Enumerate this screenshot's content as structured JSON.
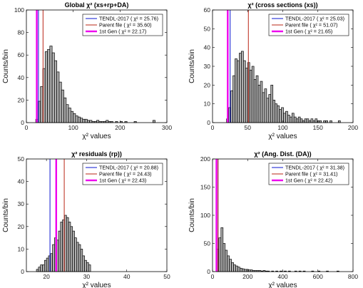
{
  "chart_data": [
    {
      "type": "bar",
      "title": "Global  χ² (xs+rp+DA)",
      "xlabel": "χ² values",
      "ylabel": "Counts/bin",
      "xlim": [
        0,
        300
      ],
      "ylim": [
        0,
        100
      ],
      "xticks": [
        0,
        100,
        200,
        300
      ],
      "yticks": [
        0,
        20,
        40,
        60,
        80,
        100
      ],
      "bin_width": 5,
      "bins": [
        [
          22.5,
          3
        ],
        [
          27.5,
          19
        ],
        [
          32.5,
          32
        ],
        [
          37.5,
          48
        ],
        [
          42.5,
          63
        ],
        [
          47.5,
          65
        ],
        [
          52.5,
          68
        ],
        [
          57.5,
          62
        ],
        [
          62.5,
          55
        ],
        [
          67.5,
          45
        ],
        [
          72.5,
          36
        ],
        [
          77.5,
          29
        ],
        [
          82.5,
          22
        ],
        [
          87.5,
          16
        ],
        [
          92.5,
          13
        ],
        [
          97.5,
          10
        ],
        [
          102.5,
          8
        ],
        [
          107.5,
          6
        ],
        [
          112.5,
          5
        ],
        [
          117.5,
          4
        ],
        [
          122.5,
          3
        ],
        [
          127.5,
          3
        ],
        [
          132.5,
          2
        ],
        [
          137.5,
          2
        ],
        [
          142.5,
          1
        ],
        [
          147.5,
          1
        ],
        [
          152.5,
          2
        ],
        [
          157.5,
          1
        ],
        [
          162.5,
          1
        ],
        [
          167.5,
          1
        ],
        [
          172.5,
          2
        ],
        [
          177.5,
          1
        ],
        [
          182.5,
          1
        ],
        [
          192.5,
          1
        ],
        [
          202.5,
          1
        ],
        [
          212.5,
          1
        ],
        [
          232.5,
          1
        ],
        [
          272.5,
          2
        ]
      ],
      "lines": [
        {
          "name": "TENDL-2017",
          "x": 25.76,
          "color": "#1f2bd6"
        },
        {
          "name": "Parent file",
          "x": 35.6,
          "color": "#c0392b"
        },
        {
          "name": "1st Gen",
          "x": 22.17,
          "color": "#ee00ee"
        }
      ],
      "legend": [
        "TENDL-2017 ( χ² = 25.76)",
        "Parent file ( χ² = 35.60)",
        "1st Gen ( χ² = 22.17)"
      ],
      "legend_position": "top-right"
    },
    {
      "type": "bar",
      "title": "χ² (cross sections (xs))",
      "xlabel": "χ² values",
      "ylabel": "Counts/bin",
      "xlim": [
        0,
        200
      ],
      "ylim": [
        0,
        60
      ],
      "xticks": [
        0,
        50,
        100,
        150,
        200
      ],
      "yticks": [
        0,
        10,
        20,
        30,
        40,
        50,
        60
      ],
      "bin_width": 3,
      "bins": [
        [
          21.5,
          2
        ],
        [
          24.5,
          8
        ],
        [
          27.5,
          17
        ],
        [
          30.5,
          25
        ],
        [
          33.5,
          34
        ],
        [
          36.5,
          33
        ],
        [
          39.5,
          37
        ],
        [
          42.5,
          38
        ],
        [
          45.5,
          33
        ],
        [
          48.5,
          29
        ],
        [
          51.5,
          32
        ],
        [
          54.5,
          28
        ],
        [
          57.5,
          30
        ],
        [
          60.5,
          23
        ],
        [
          63.5,
          25
        ],
        [
          66.5,
          20
        ],
        [
          69.5,
          22
        ],
        [
          72.5,
          16
        ],
        [
          75.5,
          18
        ],
        [
          78.5,
          13
        ],
        [
          81.5,
          15
        ],
        [
          84.5,
          20
        ],
        [
          87.5,
          12
        ],
        [
          90.5,
          10
        ],
        [
          93.5,
          9
        ],
        [
          96.5,
          7
        ],
        [
          99.5,
          8
        ],
        [
          102.5,
          5
        ],
        [
          105.5,
          6
        ],
        [
          108.5,
          4
        ],
        [
          111.5,
          3
        ],
        [
          114.5,
          5
        ],
        [
          117.5,
          3
        ],
        [
          120.5,
          2
        ],
        [
          123.5,
          3
        ],
        [
          126.5,
          2
        ],
        [
          129.5,
          1
        ],
        [
          132.5,
          2
        ],
        [
          135.5,
          2
        ],
        [
          138.5,
          1
        ],
        [
          141.5,
          2
        ],
        [
          144.5,
          1
        ],
        [
          147.5,
          2
        ],
        [
          150.5,
          1
        ],
        [
          153.5,
          1
        ],
        [
          159.5,
          1
        ],
        [
          162.5,
          1
        ],
        [
          168.5,
          1
        ],
        [
          180.5,
          1
        ]
      ],
      "lines": [
        {
          "name": "TENDL-2017",
          "x": 25.03,
          "color": "#1f2bd6"
        },
        {
          "name": "Parent file",
          "x": 51.07,
          "color": "#c0392b"
        },
        {
          "name": "1st Gen",
          "x": 21.65,
          "color": "#ee00ee"
        }
      ],
      "legend": [
        "TENDL-2017 ( χ² = 25.03)",
        "Parent file ( χ² = 51.07)",
        "1st Gen ( χ² = 21.65)"
      ],
      "legend_position": "top-right"
    },
    {
      "type": "bar",
      "title": "χ² residuals (rp))",
      "xlabel": "χ² values",
      "ylabel": "Counts/bin",
      "xlim": [
        15,
        50
      ],
      "ylim": [
        0,
        50
      ],
      "xticks": [
        20,
        30,
        40,
        50
      ],
      "yticks": [
        0,
        10,
        20,
        30,
        40,
        50
      ],
      "bin_width": 0.5,
      "bins": [
        [
          17.75,
          1
        ],
        [
          18.25,
          2
        ],
        [
          18.75,
          3
        ],
        [
          19.25,
          3
        ],
        [
          19.75,
          5
        ],
        [
          20.25,
          6
        ],
        [
          20.75,
          7
        ],
        [
          21.25,
          8
        ],
        [
          21.75,
          12
        ],
        [
          22.25,
          15
        ],
        [
          22.75,
          14
        ],
        [
          23.25,
          18
        ],
        [
          23.75,
          22
        ],
        [
          24.25,
          23
        ],
        [
          24.75,
          25
        ],
        [
          25.25,
          24
        ],
        [
          25.75,
          22
        ],
        [
          26.25,
          20
        ],
        [
          26.75,
          18
        ],
        [
          27.25,
          15
        ],
        [
          27.75,
          13
        ],
        [
          28.25,
          12
        ],
        [
          28.75,
          10
        ],
        [
          29.25,
          7
        ],
        [
          29.75,
          5
        ],
        [
          30.25,
          4
        ],
        [
          30.75,
          3
        ]
      ],
      "lines": [
        {
          "name": "TENDL-2017",
          "x": 20.88,
          "color": "#1f2bd6"
        },
        {
          "name": "Parent file",
          "x": 24.43,
          "color": "#c0392b"
        },
        {
          "name": "1st Gen",
          "x": 22.43,
          "color": "#ee00ee"
        }
      ],
      "legend": [
        "TENDL-2017 ( χ² = 20.88)",
        "Parent file ( χ² = 24.43)",
        "1st Gen ( χ² = 22.43)"
      ],
      "legend_position": "top-right"
    },
    {
      "type": "bar",
      "title": "χ² (Ang. Dist. (DA))",
      "xlabel": "χ² values",
      "ylabel": "Counts/bin",
      "xlim": [
        0,
        800
      ],
      "ylim": [
        0,
        200
      ],
      "xticks": [
        0,
        200,
        400,
        600,
        800
      ],
      "yticks": [
        0,
        50,
        100,
        150,
        200
      ],
      "bin_width": 12,
      "bins": [
        [
          30,
          40
        ],
        [
          42,
          60
        ],
        [
          54,
          78
        ],
        [
          66,
          50
        ],
        [
          78,
          38
        ],
        [
          90,
          28
        ],
        [
          102,
          22
        ],
        [
          114,
          16
        ],
        [
          126,
          12
        ],
        [
          138,
          10
        ],
        [
          150,
          8
        ],
        [
          162,
          6
        ],
        [
          174,
          5
        ],
        [
          186,
          4
        ],
        [
          198,
          4
        ],
        [
          210,
          3
        ],
        [
          222,
          3
        ],
        [
          234,
          2
        ],
        [
          246,
          2
        ],
        [
          258,
          2
        ],
        [
          270,
          2
        ],
        [
          282,
          1
        ],
        [
          294,
          2
        ],
        [
          306,
          1
        ],
        [
          318,
          1
        ],
        [
          342,
          1
        ],
        [
          366,
          1
        ],
        [
          390,
          1
        ],
        [
          414,
          1
        ],
        [
          438,
          1
        ],
        [
          474,
          1
        ],
        [
          498,
          1
        ],
        [
          522,
          1
        ],
        [
          570,
          1
        ],
        [
          606,
          1
        ],
        [
          654,
          1
        ],
        [
          714,
          1
        ]
      ],
      "lines": [
        {
          "name": "TENDL-2017",
          "x": 31.38,
          "color": "#1f2bd6"
        },
        {
          "name": "Parent file",
          "x": 31.41,
          "color": "#c0392b"
        },
        {
          "name": "1st Gen",
          "x": 22.42,
          "color": "#ee00ee"
        }
      ],
      "legend": [
        "TENDL-2017 ( χ² = 31.38)",
        "Parent file ( χ² = 31.41)",
        "1st Gen ( χ² = 22.42)"
      ],
      "legend_position": "top-right"
    }
  ]
}
